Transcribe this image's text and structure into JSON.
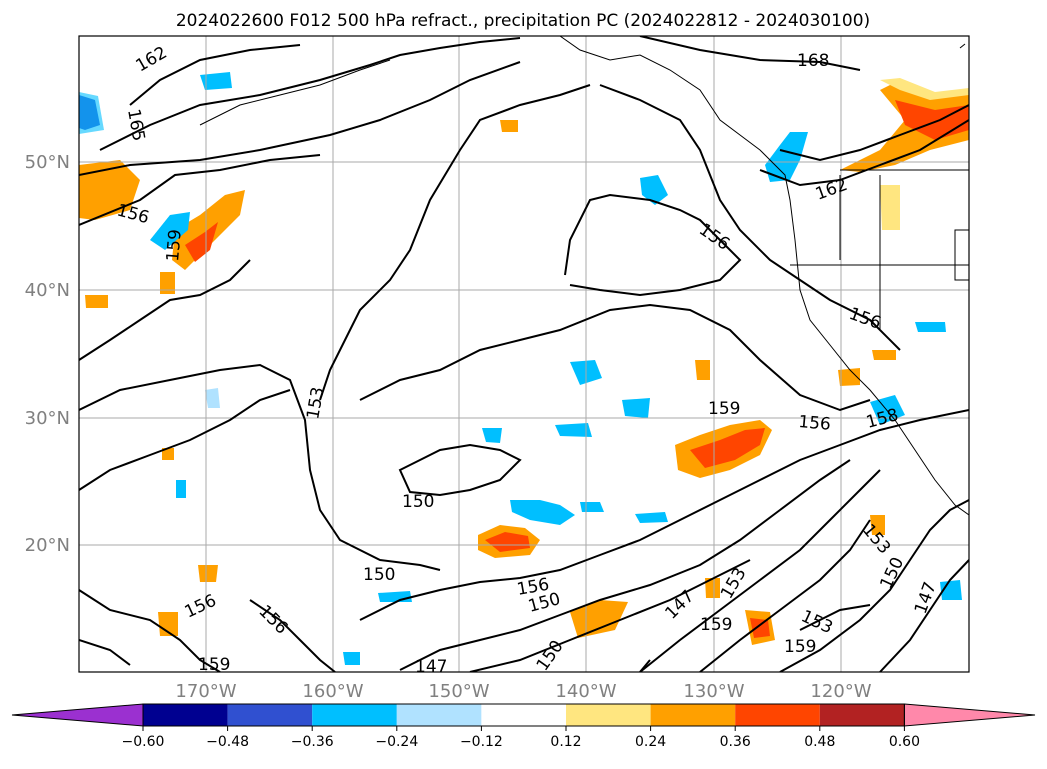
{
  "title": "2024022600 F012 500 hPa refract., precipitation PC (2024022812 - 2024030100)",
  "lat_labels": [
    "50°N",
    "40°N",
    "30°N",
    "20°N"
  ],
  "lon_labels": [
    "170°W",
    "160°W",
    "150°W",
    "140°W",
    "130°W",
    "120°W"
  ],
  "contour_labels": [
    "168",
    "162",
    "165",
    "156",
    "159",
    "156",
    "156",
    "153",
    "150",
    "150",
    "156",
    "150",
    "159",
    "156",
    "158",
    "156",
    "162",
    "147",
    "153",
    "159",
    "153",
    "159",
    "150",
    "147",
    "156",
    "159",
    "147",
    "150",
    "153"
  ],
  "colorbar": {
    "tick_labels": [
      "−0.60",
      "−0.48",
      "−0.36",
      "−0.24",
      "−0.12",
      "0.12",
      "0.24",
      "0.36",
      "0.48",
      "0.60"
    ],
    "colors": [
      "#9b30d0",
      "#000090",
      "#3050d0",
      "#00bfff",
      "#b0e2ff",
      "#ffffff",
      "#ffe680",
      "#ffa000",
      "#ff4500",
      "#b22222",
      "#ff88aa"
    ]
  },
  "colors": {
    "grid": "#aaaaaa",
    "contour": "#000000",
    "axis_label": "#808080"
  }
}
